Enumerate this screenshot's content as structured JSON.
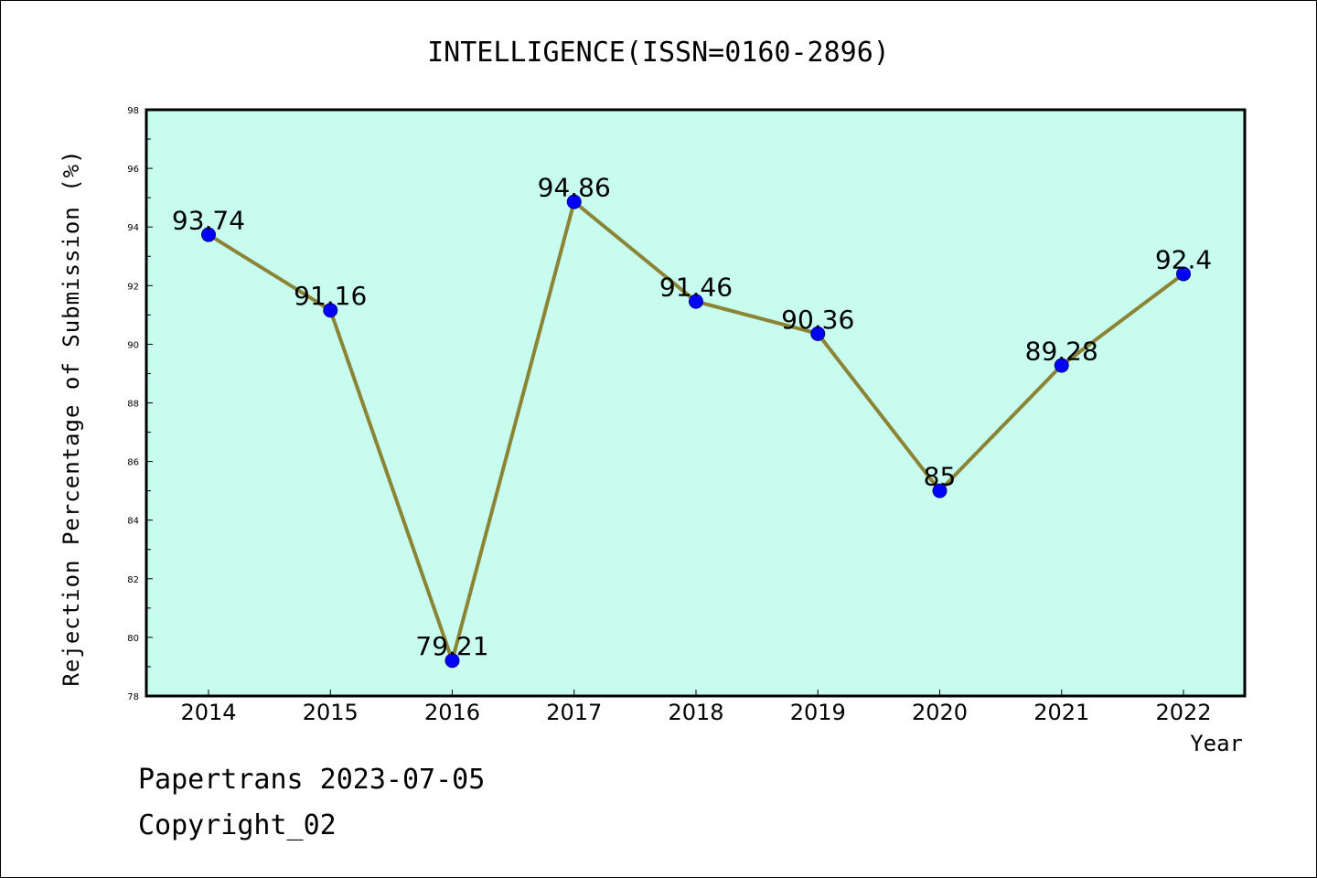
{
  "chart_data": {
    "type": "line",
    "title": "INTELLIGENCE(ISSN=0160-2896)",
    "xlabel": "Year",
    "ylabel": "Rejection Percentage of Submission (%)",
    "categories": [
      "2014",
      "2015",
      "2016",
      "2017",
      "2018",
      "2019",
      "2020",
      "2021",
      "2022"
    ],
    "values": [
      93.74,
      91.16,
      79.21,
      94.86,
      91.46,
      90.36,
      85,
      89.28,
      92.4
    ],
    "data_labels": [
      "93.74",
      "91.16",
      "79.21",
      "94.86",
      "91.46",
      "90.36",
      "85",
      "89.28",
      "92.4"
    ],
    "ylim": [
      78,
      98
    ],
    "yticks": [
      78,
      80,
      82,
      84,
      86,
      88,
      90,
      92,
      94,
      96,
      98
    ],
    "grid": false,
    "legend": "none",
    "colors": {
      "plot_background": "#c8fcee",
      "line": "#8b8434",
      "marker": "#0000ff"
    }
  },
  "footer": {
    "credit": "Papertrans 2023-07-05",
    "copyright": "Copyright_02"
  }
}
